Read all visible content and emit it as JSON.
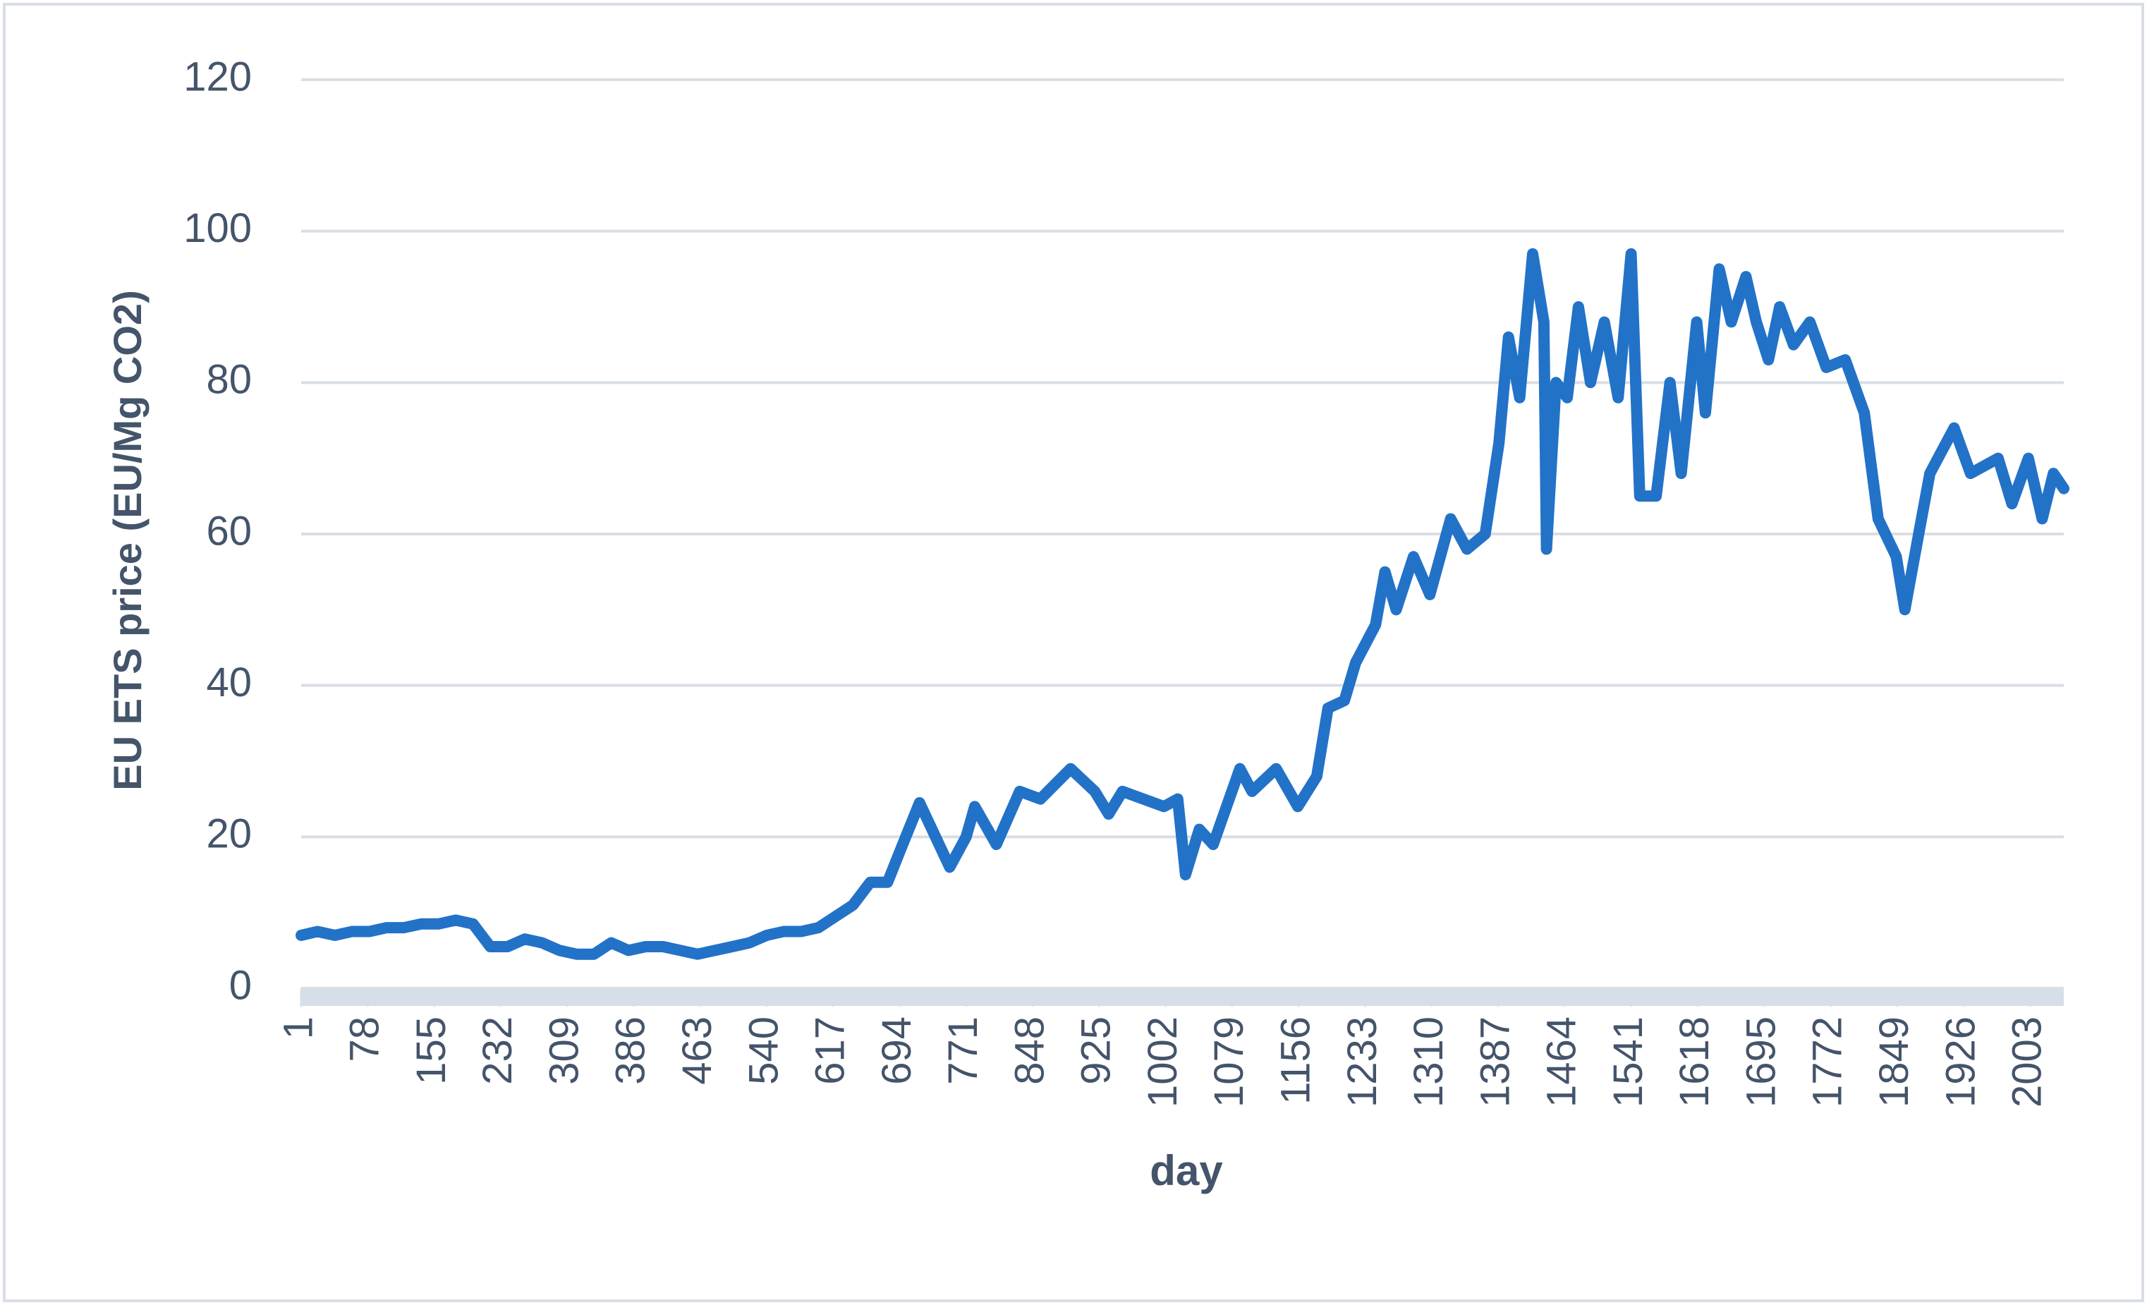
{
  "chart_data": {
    "type": "line",
    "x_label": "day",
    "y_label": "EU ETS price (EU/Mg CO2)",
    "x": [
      1,
      20,
      40,
      60,
      80,
      100,
      120,
      140,
      160,
      180,
      200,
      210,
      220,
      240,
      260,
      280,
      300,
      320,
      340,
      360,
      380,
      400,
      420,
      440,
      460,
      480,
      500,
      520,
      540,
      560,
      580,
      600,
      620,
      640,
      660,
      680,
      694,
      717,
      752,
      771,
      781,
      806,
      833,
      857,
      892,
      920,
      936,
      952,
      1000,
      1016,
      1025,
      1041,
      1057,
      1088,
      1102,
      1130,
      1155,
      1177,
      1190,
      1209,
      1222,
      1245,
      1256,
      1269,
      1289,
      1308,
      1332,
      1351,
      1372,
      1388,
      1399,
      1412,
      1427,
      1440,
      1443,
      1454,
      1467,
      1480,
      1494,
      1510,
      1526,
      1541,
      1551,
      1570,
      1586,
      1599,
      1617,
      1627,
      1643,
      1657,
      1674,
      1686,
      1700,
      1713,
      1729,
      1748,
      1767,
      1789,
      1811,
      1827,
      1848,
      1858,
      1874,
      1887,
      1915,
      1934,
      1966,
      1982,
      2001,
      2017,
      2030,
      2042
    ],
    "values": [
      7,
      7.5,
      7,
      7.5,
      7.5,
      8,
      8,
      8.5,
      8.5,
      9,
      8.5,
      7,
      5.5,
      5.5,
      6.5,
      6,
      5,
      4.5,
      4.5,
      6,
      5,
      5.5,
      5.5,
      5,
      4.5,
      5,
      5.5,
      6,
      7,
      7.5,
      7.5,
      8,
      9.5,
      11,
      14,
      14,
      18,
      24.5,
      16,
      20,
      24,
      19,
      26,
      25,
      29,
      26,
      23,
      26,
      24,
      25,
      15,
      21,
      19,
      29,
      26,
      29,
      24,
      28,
      37,
      38,
      43,
      48,
      55,
      50,
      57,
      52,
      62,
      58,
      60,
      72,
      86,
      78,
      97,
      88,
      58,
      80,
      78,
      90,
      80,
      88,
      78,
      97,
      65,
      65,
      80,
      68,
      88,
      76,
      95,
      88,
      94,
      88,
      83,
      90,
      85,
      88,
      82,
      83,
      76,
      62,
      57,
      50,
      60,
      68,
      74,
      68,
      70,
      64,
      70,
      62,
      68,
      66
    ],
    "color": "#2272c8",
    "xlim": [
      1,
      2042
    ],
    "xticks": [
      1,
      78,
      155,
      232,
      309,
      386,
      463,
      540,
      617,
      694,
      771,
      848,
      925,
      1002,
      1079,
      1156,
      1233,
      1310,
      1387,
      1464,
      1541,
      1618,
      1695,
      1772,
      1849,
      1926,
      2003
    ],
    "ylim": [
      0,
      120
    ],
    "yticks": [
      0,
      20,
      40,
      60,
      80,
      100,
      120
    ],
    "grid": true
  }
}
